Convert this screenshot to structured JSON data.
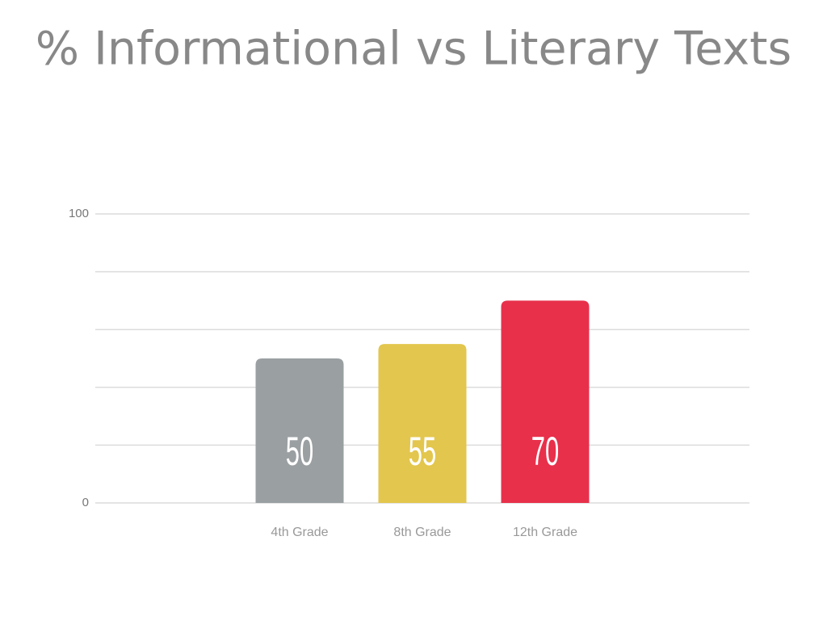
{
  "chart_data": {
    "type": "bar",
    "title": "% Informational vs Literary Texts",
    "categories": [
      "4th Grade",
      "8th Grade",
      "12th Grade"
    ],
    "values": [
      50,
      55,
      70
    ],
    "colors": [
      "#9a9fa2",
      "#e3c64d",
      "#e8304b"
    ],
    "ylim": [
      0,
      100
    ],
    "yticks": [
      0,
      100
    ],
    "grid": [
      0,
      20,
      40,
      60,
      80,
      100
    ]
  }
}
